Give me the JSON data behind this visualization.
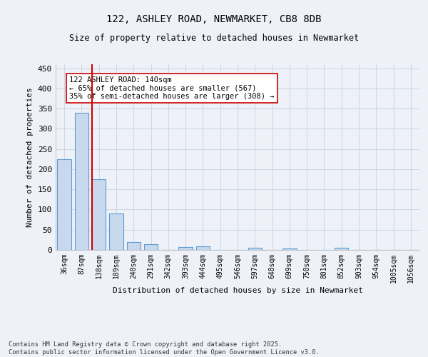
{
  "title_line1": "122, ASHLEY ROAD, NEWMARKET, CB8 8DB",
  "title_line2": "Size of property relative to detached houses in Newmarket",
  "xlabel": "Distribution of detached houses by size in Newmarket",
  "ylabel": "Number of detached properties",
  "categories": [
    "36sqm",
    "87sqm",
    "138sqm",
    "189sqm",
    "240sqm",
    "291sqm",
    "342sqm",
    "393sqm",
    "444sqm",
    "495sqm",
    "546sqm",
    "597sqm",
    "648sqm",
    "699sqm",
    "750sqm",
    "801sqm",
    "852sqm",
    "903sqm",
    "954sqm",
    "1005sqm",
    "1056sqm"
  ],
  "values": [
    225,
    340,
    175,
    90,
    20,
    14,
    0,
    7,
    8,
    0,
    0,
    5,
    0,
    4,
    0,
    0,
    5,
    0,
    0,
    0,
    0
  ],
  "bar_color": "#c9d9ed",
  "bar_edge_color": "#5b9bd5",
  "grid_color": "#d0d8e8",
  "background_color": "#eef2f8",
  "red_line_index": 2,
  "red_line_color": "#cc0000",
  "annotation_text": "122 ASHLEY ROAD: 140sqm\n← 65% of detached houses are smaller (567)\n35% of semi-detached houses are larger (308) →",
  "annotation_box_color": "#ffffff",
  "annotation_box_edge": "#cc0000",
  "ylim": [
    0,
    460
  ],
  "yticks": [
    0,
    50,
    100,
    150,
    200,
    250,
    300,
    350,
    400,
    450
  ],
  "footer": "Contains HM Land Registry data © Crown copyright and database right 2025.\nContains public sector information licensed under the Open Government Licence v3.0."
}
